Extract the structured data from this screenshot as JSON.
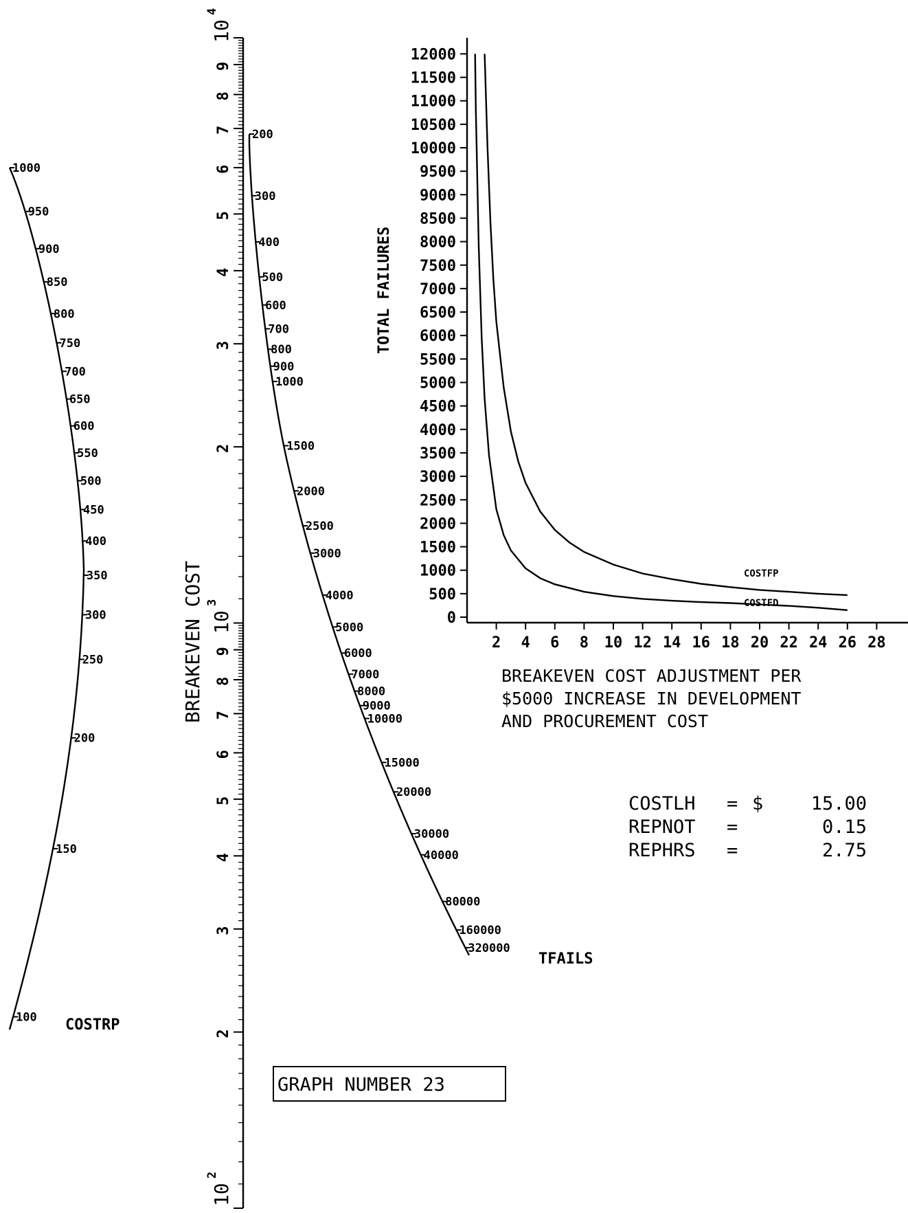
{
  "chart_data": [
    {
      "type": "nomogram",
      "axes": [
        {
          "name": "COSTRP",
          "ticks": [
            1000,
            950,
            900,
            850,
            800,
            750,
            700,
            650,
            600,
            550,
            500,
            450,
            400,
            350,
            300,
            250,
            200,
            150,
            100
          ],
          "tick_labels": [
            "1000",
            "950",
            "900",
            "850",
            "800",
            "750",
            "700",
            "650",
            "600",
            "550",
            "500",
            "450",
            "400",
            "350",
            "300",
            "250",
            "200",
            "150",
            "100"
          ]
        },
        {
          "name": "BREAKEVEN COST",
          "scale": "log",
          "range": [
            100,
            10000
          ],
          "decade_labels": [
            "10",
            "10"
          ],
          "decade_exponents": [
            "4",
            "3",
            "2"
          ],
          "major_ticks": [
            "9",
            "8",
            "7",
            "6",
            "5",
            "4",
            "3",
            "2",
            "9",
            "8",
            "7",
            "6",
            "5",
            "4",
            "3",
            "2"
          ]
        },
        {
          "name": "TFAILS",
          "ticks": [
            200,
            300,
            400,
            500,
            600,
            700,
            800,
            900,
            1000,
            1500,
            2000,
            2500,
            3000,
            4000,
            5000,
            6000,
            7000,
            8000,
            9000,
            10000,
            15000,
            20000,
            30000,
            40000,
            80000,
            160000,
            320000
          ],
          "tick_labels": [
            "200",
            "300",
            "400",
            "500",
            "600",
            "700",
            "800",
            "900",
            "1000",
            "1500",
            "2000",
            "2500",
            "3000",
            "4000",
            "5000",
            "6000",
            "7000",
            "8000",
            "9000",
            "10000",
            "15000",
            "20000",
            "30000",
            "40000",
            "80000",
            "160000",
            "320000"
          ]
        }
      ]
    },
    {
      "type": "line",
      "ylabel": "TOTAL FAILURES",
      "xlabel": "BREAKEVEN COST ADJUSTMENT PER $5000 INCREASE IN DEVELOPMENT AND PROCUREMENT COST",
      "xlabel_lines": [
        "BREAKEVEN COST ADJUSTMENT PER",
        "$5000 INCREASE IN DEVELOPMENT",
        "AND PROCUREMENT COST"
      ],
      "xlim": [
        0,
        28
      ],
      "ylim": [
        0,
        12000
      ],
      "xticks": [
        "2",
        "4",
        "6",
        "8",
        "10",
        "12",
        "14",
        "16",
        "18",
        "20",
        "22",
        "24",
        "26",
        "28"
      ],
      "yticks": [
        "0",
        "500",
        "1000",
        "1500",
        "2000",
        "2500",
        "3000",
        "3500",
        "4000",
        "4500",
        "5000",
        "5500",
        "6000",
        "6500",
        "7000",
        "7500",
        "8000",
        "8500",
        "9000",
        "9500",
        "10000",
        "10500",
        "11000",
        "11500",
        "12000"
      ],
      "series": [
        {
          "name": "COSTFP",
          "x": [
            1.2,
            1.4,
            1.6,
            1.8,
            2.0,
            2.5,
            3,
            3.5,
            4,
            5,
            6,
            7,
            8,
            10,
            12,
            14,
            16,
            18,
            20,
            22,
            24,
            26
          ],
          "y": [
            12000,
            10000,
            8400,
            7200,
            6300,
            4900,
            3950,
            3320,
            2860,
            2250,
            1860,
            1590,
            1390,
            1120,
            930,
            810,
            710,
            640,
            580,
            540,
            500,
            470
          ]
        },
        {
          "name": "COSTFD",
          "x": [
            0.55,
            0.6,
            0.8,
            1.0,
            1.2,
            1.5,
            2.0,
            2.5,
            3,
            4,
            5,
            6,
            8,
            10,
            12,
            14,
            16,
            18,
            20,
            22,
            24,
            26
          ],
          "y": [
            12000,
            10800,
            7900,
            5950,
            4650,
            3450,
            2300,
            1750,
            1420,
            1040,
            830,
            700,
            540,
            450,
            390,
            350,
            320,
            300,
            270,
            240,
            200,
            150
          ]
        }
      ]
    }
  ],
  "parameters": [
    {
      "label": "COSTLH",
      "eq": "=",
      "unit": "$",
      "value": "15.00"
    },
    {
      "label": "REPNOT",
      "eq": "=",
      "unit": "",
      "value": "0.15"
    },
    {
      "label": "REPHRS",
      "eq": "=",
      "unit": "",
      "value": "2.75"
    }
  ],
  "graph_label": "GRAPH NUMBER  23"
}
